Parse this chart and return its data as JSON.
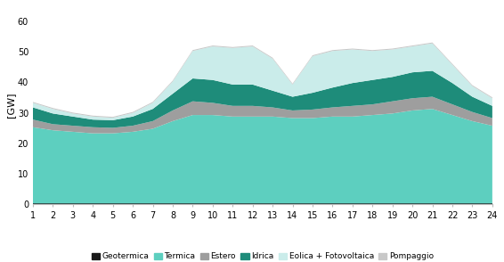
{
  "ylabel": "[GW]",
  "xlim": [
    1,
    24
  ],
  "ylim": [
    0,
    65
  ],
  "yticks": [
    0,
    10,
    20,
    30,
    40,
    50,
    60
  ],
  "xticks": [
    1,
    2,
    3,
    4,
    5,
    6,
    7,
    8,
    9,
    10,
    11,
    12,
    13,
    14,
    15,
    16,
    17,
    18,
    19,
    20,
    21,
    22,
    23,
    24
  ],
  "background_color": "#ffffff",
  "hours": [
    1,
    2,
    3,
    4,
    5,
    6,
    7,
    8,
    9,
    10,
    11,
    12,
    13,
    14,
    15,
    16,
    17,
    18,
    19,
    20,
    21,
    22,
    23,
    24
  ],
  "geotermica": [
    0.3,
    0.3,
    0.3,
    0.3,
    0.3,
    0.3,
    0.3,
    0.3,
    0.3,
    0.3,
    0.3,
    0.3,
    0.3,
    0.3,
    0.3,
    0.3,
    0.3,
    0.3,
    0.3,
    0.3,
    0.3,
    0.3,
    0.3,
    0.3
  ],
  "termica": [
    25.0,
    24.0,
    23.5,
    23.0,
    23.0,
    23.5,
    24.5,
    27.0,
    29.0,
    29.0,
    28.5,
    28.5,
    28.5,
    28.0,
    28.0,
    28.5,
    28.5,
    29.0,
    29.5,
    30.5,
    31.0,
    29.0,
    27.0,
    25.5
  ],
  "estero": [
    2.5,
    2.0,
    2.0,
    2.0,
    1.8,
    2.0,
    2.5,
    3.5,
    4.5,
    4.0,
    3.5,
    3.5,
    3.0,
    2.5,
    2.8,
    3.0,
    3.5,
    3.5,
    4.0,
    4.0,
    4.0,
    3.5,
    3.0,
    2.5
  ],
  "idrica": [
    4.0,
    3.5,
    3.0,
    2.5,
    2.5,
    3.0,
    4.0,
    5.5,
    7.5,
    7.5,
    7.0,
    7.0,
    5.5,
    4.5,
    5.5,
    6.5,
    7.5,
    8.0,
    8.0,
    8.5,
    8.5,
    7.0,
    5.0,
    4.0
  ],
  "eolica": [
    1.5,
    1.5,
    1.0,
    1.0,
    0.8,
    1.2,
    2.0,
    4.0,
    9.0,
    11.0,
    12.0,
    12.5,
    10.5,
    4.0,
    12.0,
    12.0,
    11.0,
    9.5,
    9.0,
    8.5,
    9.0,
    6.0,
    3.5,
    2.5
  ],
  "pompaggio": [
    0.3,
    0.3,
    0.3,
    0.3,
    0.3,
    0.3,
    0.3,
    0.3,
    0.3,
    0.3,
    0.3,
    0.3,
    0.3,
    0.3,
    0.3,
    0.3,
    0.3,
    0.3,
    0.3,
    0.3,
    0.3,
    0.3,
    0.3,
    0.3
  ],
  "colors": {
    "geotermica": "#1a1a1a",
    "termica": "#5DCFBF",
    "estero": "#9e9e9e",
    "idrica": "#1e8c7a",
    "eolica": "#caecea",
    "pompaggio": "#c8c8c8"
  },
  "legend_labels": [
    "Geotermica",
    "Termica",
    "Estero",
    "Idrica",
    "Eolica + Fotovoltaica",
    "Pompaggio"
  ]
}
